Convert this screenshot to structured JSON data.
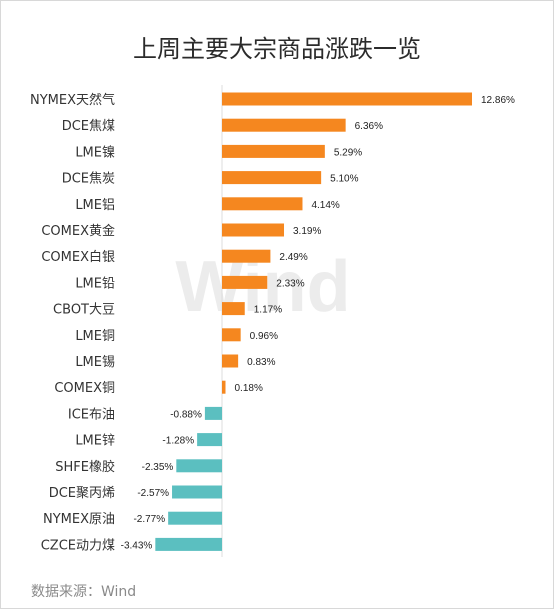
{
  "title": "上周主要大宗商品涨跌一览",
  "source": "数据来源：Wind",
  "watermark": "Wind",
  "colors": {
    "positive": "#f5871f",
    "negative": "#5bbfc0"
  },
  "chart_data": {
    "type": "bar",
    "orientation": "horizontal",
    "title": "上周主要大宗商品涨跌一览",
    "unit": "%",
    "categories": [
      "NYMEX天然气",
      "DCE焦煤",
      "LME镍",
      "DCE焦炭",
      "LME铝",
      "COMEX黄金",
      "COMEX白银",
      "LME铅",
      "CBOT大豆",
      "LME铜",
      "LME锡",
      "COMEX铜",
      "ICE布油",
      "LME锌",
      "SHFE橡胶",
      "DCE聚丙烯",
      "NYMEX原油",
      "CZCE动力煤"
    ],
    "values": [
      12.86,
      6.36,
      5.29,
      5.1,
      4.14,
      3.19,
      2.49,
      2.33,
      1.17,
      0.96,
      0.83,
      0.18,
      -0.88,
      -1.28,
      -2.35,
      -2.57,
      -2.77,
      -3.43
    ],
    "labels": [
      "12.86%",
      "6.36%",
      "5.29%",
      "5.10%",
      "4.14%",
      "3.19%",
      "2.49%",
      "2.33%",
      "1.17%",
      "0.96%",
      "0.83%",
      "0.18%",
      "-0.88%",
      "-1.28%",
      "-2.35%",
      "-2.57%",
      "-2.77%",
      "-3.43%"
    ],
    "grid": false,
    "legend": "none"
  }
}
